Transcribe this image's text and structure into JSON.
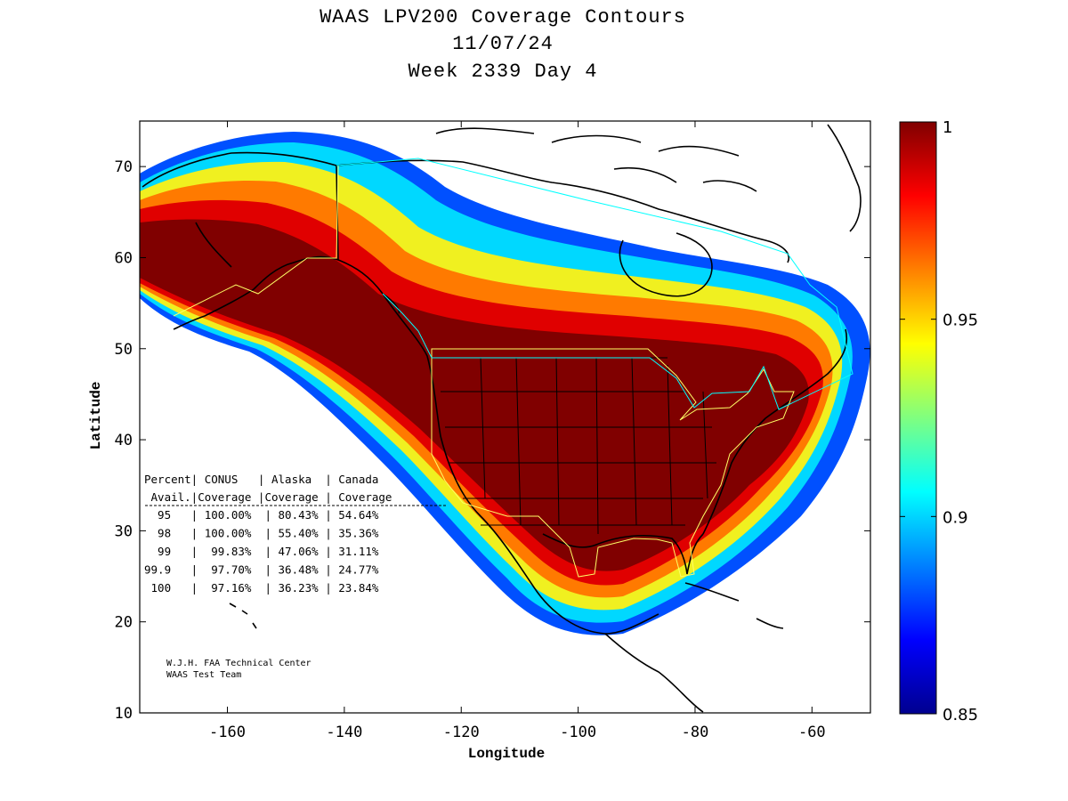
{
  "title": {
    "line1": "WAAS LPV200 Coverage Contours",
    "line2": "11/07/24",
    "line3": "Week 2339 Day 4"
  },
  "axes": {
    "xlabel": "Longitude",
    "ylabel": "Latitude",
    "xticks": [
      "-160",
      "-140",
      "-120",
      "-100",
      "-80",
      "-60"
    ],
    "yticks": [
      "70",
      "60",
      "50",
      "40",
      "30",
      "20",
      "10"
    ],
    "xlim": [
      -175,
      -50
    ],
    "ylim": [
      10,
      75
    ]
  },
  "colorbar": {
    "ticks": [
      "1",
      "0.95",
      "0.9",
      "0.85"
    ],
    "range": [
      0.85,
      1.0
    ],
    "colormap": "jet"
  },
  "table": {
    "header1": "Percent| CONUS   | Alaska  | Canada",
    "header2": " Avail.|Coverage |Coverage | Coverage",
    "rows": [
      "  95   | 100.00%  | 80.43% | 54.64%",
      "  98   | 100.00%  | 55.40% | 35.36%",
      "  99   |  99.83%  | 47.06% | 31.11%",
      "99.9   |  97.70%  | 36.48% | 24.77%",
      " 100   |  97.16%  | 36.23% | 23.84%"
    ]
  },
  "credit": {
    "line1": "W.J.H. FAA Technical Center",
    "line2": "WAAS Test Team"
  },
  "colors": {
    "contour_full": "#7f0000",
    "contour_high": "#cc0000",
    "contour_mid": "#ff8000",
    "contour_yellow": "#ffff00",
    "contour_cyan": "#00e0ff",
    "contour_blue": "#0060ff",
    "coastline": "#000000",
    "service_boundary": "#ffff66",
    "canada_boundary": "#00ffff"
  }
}
